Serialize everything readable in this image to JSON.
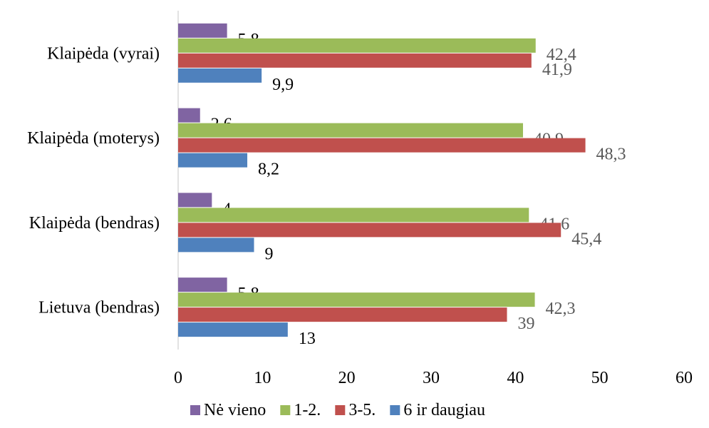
{
  "chart_data": {
    "type": "bar",
    "orientation": "horizontal",
    "categories": [
      "Lietuva (bendras)",
      "Klaipėda (bendras)",
      "Klaipėda (moterys)",
      "Klaipėda (vyrai)"
    ],
    "series": [
      {
        "name": "6 ir daugiau",
        "color": "#4F81BD",
        "values": [
          13,
          9,
          8.2,
          9.9
        ],
        "labels": [
          "13",
          "9",
          "8,2",
          "9,9"
        ]
      },
      {
        "name": "3-5.",
        "color": "#C0504D",
        "values": [
          39,
          45.4,
          48.3,
          41.9
        ],
        "labels": [
          "39",
          "45,4",
          "48,3",
          "41,9"
        ]
      },
      {
        "name": "1-2.",
        "color": "#9BBB59",
        "values": [
          42.3,
          41.6,
          40.9,
          42.4
        ],
        "labels": [
          "42,3",
          "41,6",
          "40,9",
          "42,4"
        ]
      },
      {
        "name": "Nė vieno",
        "color": "#8064A2",
        "values": [
          5.8,
          4,
          2.6,
          5.8
        ],
        "labels": [
          "5,8",
          "4",
          "2,6",
          "5,8"
        ]
      }
    ],
    "legend_order": [
      "Nė vieno",
      "1-2.",
      "3-5.",
      "6 ir daugiau"
    ],
    "xlim": [
      0,
      60
    ],
    "xticks": [
      "0",
      "10",
      "20",
      "30",
      "40",
      "50",
      "60"
    ],
    "grid": false,
    "legend_position": "bottom",
    "title": "",
    "xlabel": "",
    "ylabel": ""
  }
}
